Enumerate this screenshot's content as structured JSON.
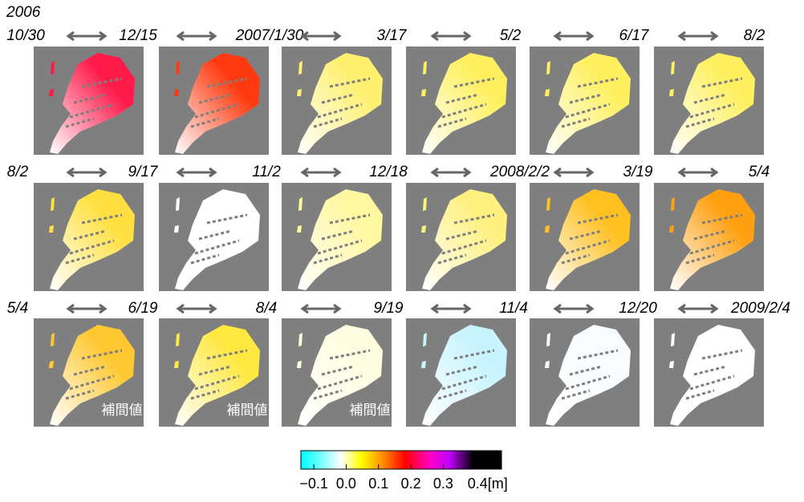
{
  "header": {
    "year": "2006"
  },
  "rows": [
    {
      "dates": [
        "10/30",
        "12/15",
        "2007/1/30",
        "3/17",
        "5/2",
        "6/17",
        "8/2"
      ],
      "panels": [
        {
          "color": "#ff1a4a"
        },
        {
          "color": "#ff3a10"
        },
        {
          "color": "#fff070"
        },
        {
          "color": "#fff060"
        },
        {
          "color": "#fff060"
        },
        {
          "color": "#fff060"
        }
      ]
    },
    {
      "dates": [
        "8/2",
        "9/17",
        "11/2",
        "12/18",
        "2008/2/2",
        "3/19",
        "5/4"
      ],
      "panels": [
        {
          "color": "#ffe040"
        },
        {
          "color": "#ffffff"
        },
        {
          "color": "#fff8a0"
        },
        {
          "color": "#fff080"
        },
        {
          "color": "#ffc020"
        },
        {
          "color": "#ffa010"
        }
      ]
    },
    {
      "dates": [
        "5/4",
        "6/19",
        "8/4",
        "9/19",
        "11/4",
        "12/20",
        "2009/2/4"
      ],
      "panels": [
        {
          "color": "#ffc830",
          "note": "補間値"
        },
        {
          "color": "#ffe840",
          "note": "補間値"
        },
        {
          "color": "#fffde0",
          "note": "補間値"
        },
        {
          "color": "#c8f4ff"
        },
        {
          "color": "#f8fcff"
        },
        {
          "color": "#ffffff"
        }
      ]
    }
  ],
  "colorbar": {
    "lim": [
      -0.14,
      0.48
    ],
    "ticks": [
      {
        "value": -0.1,
        "label": "−0.1"
      },
      {
        "value": 0,
        "label": "0.0"
      },
      {
        "value": 0.1,
        "label": "0.1"
      },
      {
        "value": 0.2,
        "label": "0.2"
      },
      {
        "value": 0.3,
        "label": "0.3"
      },
      {
        "value": 0.4,
        "label": "0.4[m]"
      }
    ]
  }
}
